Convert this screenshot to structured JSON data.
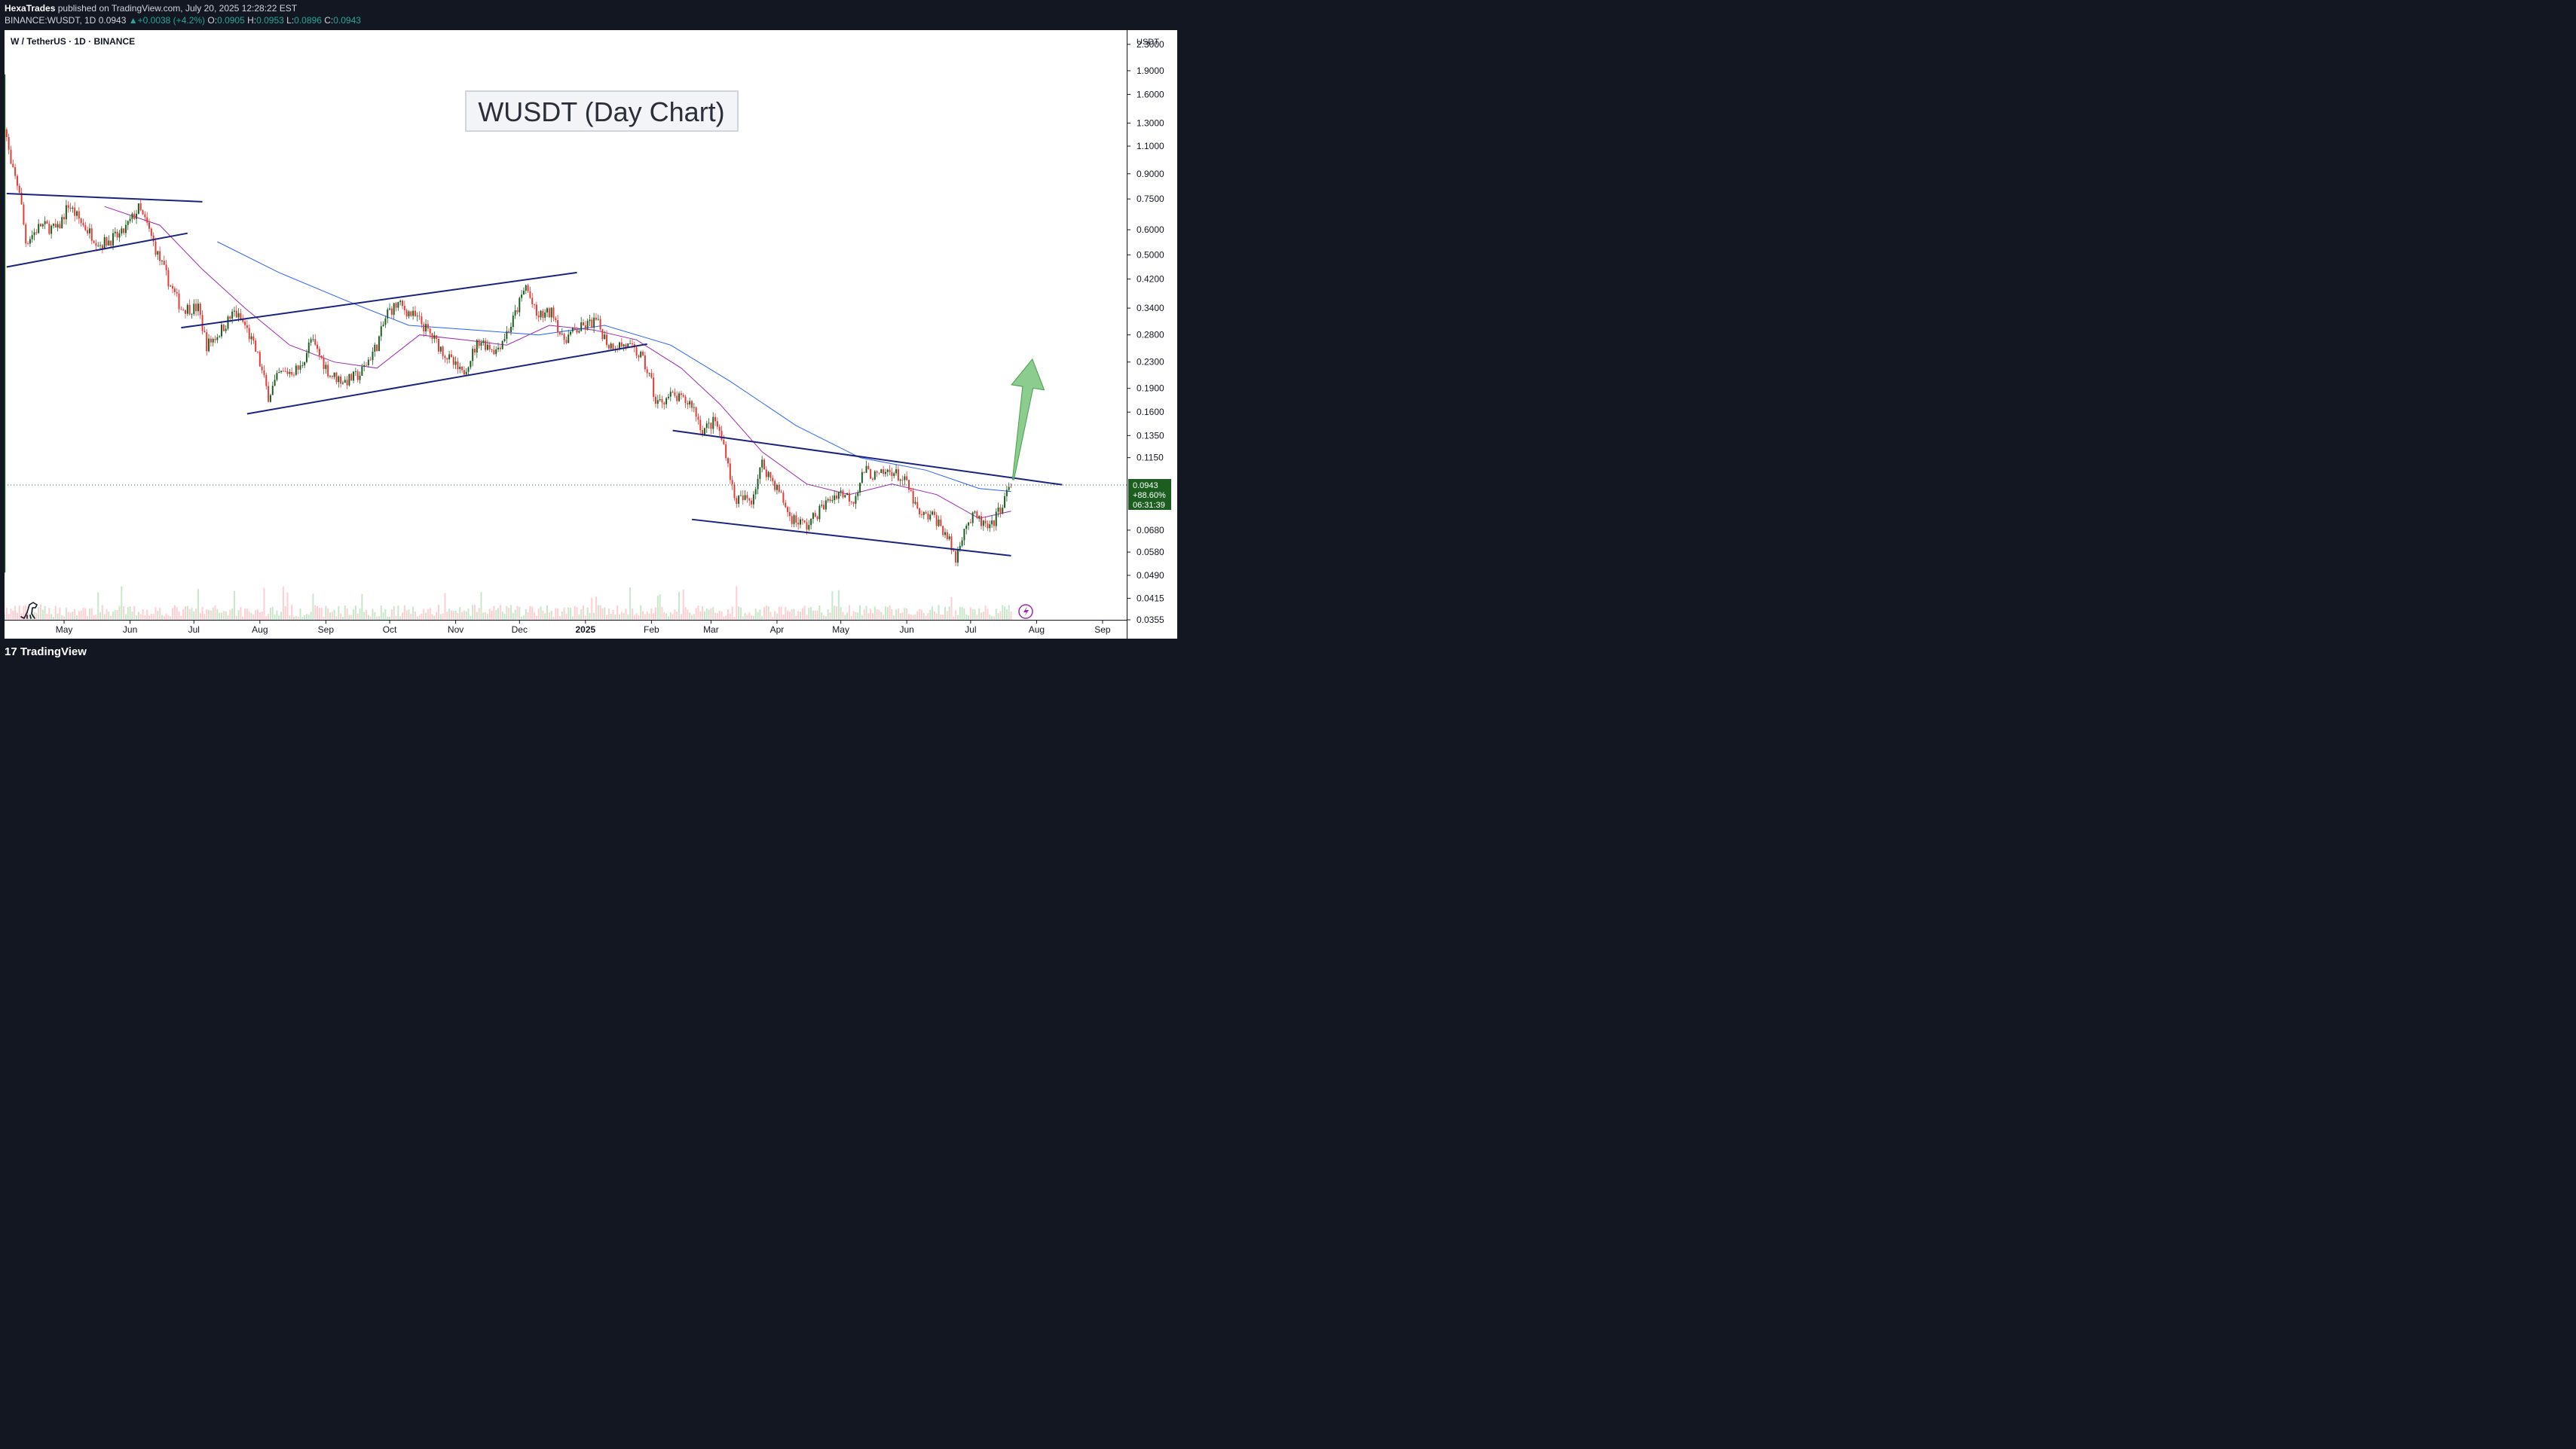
{
  "header": {
    "author": "HexaTrades",
    "published_text": "published on TradingView.com, July 20, 2025 12:28:22 EST",
    "symbol_line": "BINANCE:WUSDT, 1D",
    "last": "0.0943",
    "change": "+0.0038 (+4.2%)",
    "open_label": "O:",
    "open": "0.0905",
    "high_label": "H:",
    "high": "0.0953",
    "low_label": "L:",
    "low": "0.0896",
    "close_label": "C:",
    "close": "0.0943"
  },
  "legend": {
    "instrument": "W / TetherUS · 1D · BINANCE"
  },
  "price_badge": {
    "price": "0.0943",
    "change_pct": "+88.60%",
    "countdown": "06:31:39"
  },
  "footer": {
    "logo_text": "TradingView",
    "logo_mark": "17"
  },
  "colors": {
    "up": "#26a69a",
    "candle_up": "#1b5e20",
    "candle_down": "#e53935",
    "ma_fast": "#9c27b0",
    "ma_slow": "#2962ff",
    "trendline": "#1a237e",
    "arrow": "#66bb6a",
    "price_badge": "#1b5e20"
  },
  "chart_data": {
    "type": "candlestick",
    "title": "WUSDT (Day Chart)",
    "y_axis": {
      "unit": "USDT",
      "scale": "log",
      "ticks": [
        2.3,
        1.9,
        1.6,
        1.3,
        1.1,
        0.9,
        0.75,
        0.6,
        0.5,
        0.42,
        0.34,
        0.28,
        0.23,
        0.19,
        0.16,
        0.135,
        0.115,
        0.068,
        0.058,
        0.049,
        0.0415,
        0.0355
      ],
      "tick_labels": [
        "2.3000",
        "1.9000",
        "1.6000",
        "1.3000",
        "1.1000",
        "0.9000",
        "0.7500",
        "0.6000",
        "0.5000",
        "0.4200",
        "0.3400",
        "0.2800",
        "0.2300",
        "0.1900",
        "0.1600",
        "0.1350",
        "0.1150",
        "0.0680",
        "0.0580",
        "0.0490",
        "0.0415",
        "0.0355"
      ],
      "range": [
        0.0355,
        2.55
      ]
    },
    "x_axis": {
      "range": [
        "2024-04-03",
        "2025-09-12"
      ],
      "ticks": [
        {
          "date": "2024-05-01",
          "label": "May"
        },
        {
          "date": "2024-06-01",
          "label": "Jun"
        },
        {
          "date": "2024-07-01",
          "label": "Jul"
        },
        {
          "date": "2024-08-01",
          "label": "Aug"
        },
        {
          "date": "2024-09-01",
          "label": "Sep"
        },
        {
          "date": "2024-10-01",
          "label": "Oct"
        },
        {
          "date": "2024-11-01",
          "label": "Nov"
        },
        {
          "date": "2024-12-01",
          "label": "Dec"
        },
        {
          "date": "2025-01-01",
          "label": "2025",
          "bold": true
        },
        {
          "date": "2025-02-01",
          "label": "Feb"
        },
        {
          "date": "2025-03-01",
          "label": "Mar"
        },
        {
          "date": "2025-04-01",
          "label": "Apr"
        },
        {
          "date": "2025-05-01",
          "label": "May"
        },
        {
          "date": "2025-06-01",
          "label": "Jun"
        },
        {
          "date": "2025-07-01",
          "label": "Jul"
        },
        {
          "date": "2025-08-01",
          "label": "Aug"
        },
        {
          "date": "2025-09-01",
          "label": "Sep"
        }
      ]
    },
    "price_path": [
      {
        "date": "2024-04-03",
        "price": 1.3
      },
      {
        "date": "2024-04-06",
        "price": 0.95
      },
      {
        "date": "2024-04-10",
        "price": 0.8
      },
      {
        "date": "2024-04-13",
        "price": 0.55
      },
      {
        "date": "2024-04-20",
        "price": 0.62
      },
      {
        "date": "2024-04-28",
        "price": 0.6
      },
      {
        "date": "2024-05-03",
        "price": 0.72
      },
      {
        "date": "2024-05-10",
        "price": 0.62
      },
      {
        "date": "2024-05-18",
        "price": 0.54
      },
      {
        "date": "2024-05-28",
        "price": 0.58
      },
      {
        "date": "2024-06-05",
        "price": 0.7
      },
      {
        "date": "2024-06-09",
        "price": 0.62
      },
      {
        "date": "2024-06-14",
        "price": 0.5
      },
      {
        "date": "2024-06-20",
        "price": 0.4
      },
      {
        "date": "2024-06-25",
        "price": 0.34
      },
      {
        "date": "2024-07-03",
        "price": 0.34
      },
      {
        "date": "2024-07-07",
        "price": 0.26
      },
      {
        "date": "2024-07-12",
        "price": 0.28
      },
      {
        "date": "2024-07-20",
        "price": 0.33
      },
      {
        "date": "2024-07-25",
        "price": 0.3
      },
      {
        "date": "2024-07-31",
        "price": 0.24
      },
      {
        "date": "2024-08-05",
        "price": 0.18
      },
      {
        "date": "2024-08-10",
        "price": 0.21
      },
      {
        "date": "2024-08-20",
        "price": 0.22
      },
      {
        "date": "2024-08-25",
        "price": 0.27
      },
      {
        "date": "2024-09-03",
        "price": 0.21
      },
      {
        "date": "2024-09-10",
        "price": 0.2
      },
      {
        "date": "2024-09-17",
        "price": 0.21
      },
      {
        "date": "2024-09-25",
        "price": 0.26
      },
      {
        "date": "2024-09-30",
        "price": 0.33
      },
      {
        "date": "2024-10-05",
        "price": 0.35
      },
      {
        "date": "2024-10-15",
        "price": 0.31
      },
      {
        "date": "2024-10-22",
        "price": 0.27
      },
      {
        "date": "2024-10-30",
        "price": 0.23
      },
      {
        "date": "2024-11-04",
        "price": 0.21
      },
      {
        "date": "2024-11-12",
        "price": 0.27
      },
      {
        "date": "2024-11-20",
        "price": 0.25
      },
      {
        "date": "2024-11-27",
        "price": 0.3
      },
      {
        "date": "2024-12-04",
        "price": 0.4
      },
      {
        "date": "2024-12-09",
        "price": 0.32
      },
      {
        "date": "2024-12-17",
        "price": 0.33
      },
      {
        "date": "2024-12-21",
        "price": 0.27
      },
      {
        "date": "2024-12-28",
        "price": 0.29
      },
      {
        "date": "2025-01-06",
        "price": 0.31
      },
      {
        "date": "2025-01-12",
        "price": 0.26
      },
      {
        "date": "2025-01-20",
        "price": 0.26
      },
      {
        "date": "2025-01-27",
        "price": 0.24
      },
      {
        "date": "2025-02-01",
        "price": 0.2
      },
      {
        "date": "2025-02-03",
        "price": 0.17
      },
      {
        "date": "2025-02-10",
        "price": 0.18
      },
      {
        "date": "2025-02-20",
        "price": 0.17
      },
      {
        "date": "2025-02-25",
        "price": 0.14
      },
      {
        "date": "2025-03-03",
        "price": 0.15
      },
      {
        "date": "2025-03-08",
        "price": 0.12
      },
      {
        "date": "2025-03-12",
        "price": 0.085
      },
      {
        "date": "2025-03-20",
        "price": 0.085
      },
      {
        "date": "2025-03-25",
        "price": 0.11
      },
      {
        "date": "2025-04-02",
        "price": 0.09
      },
      {
        "date": "2025-04-07",
        "price": 0.075
      },
      {
        "date": "2025-04-15",
        "price": 0.07
      },
      {
        "date": "2025-04-22",
        "price": 0.08
      },
      {
        "date": "2025-04-30",
        "price": 0.09
      },
      {
        "date": "2025-05-07",
        "price": 0.085
      },
      {
        "date": "2025-05-12",
        "price": 0.105
      },
      {
        "date": "2025-05-18",
        "price": 0.1
      },
      {
        "date": "2025-05-25",
        "price": 0.105
      },
      {
        "date": "2025-06-01",
        "price": 0.095
      },
      {
        "date": "2025-06-07",
        "price": 0.075
      },
      {
        "date": "2025-06-14",
        "price": 0.075
      },
      {
        "date": "2025-06-20",
        "price": 0.065
      },
      {
        "date": "2025-06-24",
        "price": 0.055
      },
      {
        "date": "2025-06-28",
        "price": 0.07
      },
      {
        "date": "2025-07-03",
        "price": 0.075
      },
      {
        "date": "2025-07-10",
        "price": 0.068
      },
      {
        "date": "2025-07-15",
        "price": 0.08
      },
      {
        "date": "2025-07-20",
        "price": 0.0943
      }
    ],
    "moving_averages": [
      {
        "color": "#9c27b0",
        "points": [
          {
            "date": "2024-05-20",
            "price": 0.71
          },
          {
            "date": "2024-06-15",
            "price": 0.62
          },
          {
            "date": "2024-07-05",
            "price": 0.45
          },
          {
            "date": "2024-07-25",
            "price": 0.34
          },
          {
            "date": "2024-08-15",
            "price": 0.26
          },
          {
            "date": "2024-09-05",
            "price": 0.23
          },
          {
            "date": "2024-09-25",
            "price": 0.22
          },
          {
            "date": "2024-10-15",
            "price": 0.28
          },
          {
            "date": "2024-11-05",
            "price": 0.27
          },
          {
            "date": "2024-11-25",
            "price": 0.26
          },
          {
            "date": "2024-12-15",
            "price": 0.3
          },
          {
            "date": "2025-01-05",
            "price": 0.29
          },
          {
            "date": "2025-01-25",
            "price": 0.27
          },
          {
            "date": "2025-02-15",
            "price": 0.22
          },
          {
            "date": "2025-03-05",
            "price": 0.17
          },
          {
            "date": "2025-03-25",
            "price": 0.12
          },
          {
            "date": "2025-04-15",
            "price": 0.095
          },
          {
            "date": "2025-05-05",
            "price": 0.088
          },
          {
            "date": "2025-05-25",
            "price": 0.095
          },
          {
            "date": "2025-06-15",
            "price": 0.088
          },
          {
            "date": "2025-07-05",
            "price": 0.074
          },
          {
            "date": "2025-07-20",
            "price": 0.078
          }
        ]
      },
      {
        "color": "#2962ff",
        "points": [
          {
            "date": "2024-07-12",
            "price": 0.55
          },
          {
            "date": "2024-08-10",
            "price": 0.44
          },
          {
            "date": "2024-09-10",
            "price": 0.36
          },
          {
            "date": "2024-10-10",
            "price": 0.3
          },
          {
            "date": "2024-11-10",
            "price": 0.29
          },
          {
            "date": "2024-12-10",
            "price": 0.28
          },
          {
            "date": "2025-01-10",
            "price": 0.3
          },
          {
            "date": "2025-02-10",
            "price": 0.26
          },
          {
            "date": "2025-03-10",
            "price": 0.2
          },
          {
            "date": "2025-04-10",
            "price": 0.145
          },
          {
            "date": "2025-05-10",
            "price": 0.115
          },
          {
            "date": "2025-06-10",
            "price": 0.105
          },
          {
            "date": "2025-07-05",
            "price": 0.092
          },
          {
            "date": "2025-07-20",
            "price": 0.09
          }
        ]
      }
    ],
    "trendlines": [
      {
        "from": {
          "date": "2024-04-04",
          "price": 0.78
        },
        "to": {
          "date": "2024-07-05",
          "price": 0.735
        }
      },
      {
        "from": {
          "date": "2024-04-04",
          "price": 0.458
        },
        "to": {
          "date": "2024-06-28",
          "price": 0.585
        }
      },
      {
        "from": {
          "date": "2024-06-25",
          "price": 0.295
        },
        "to": {
          "date": "2024-12-28",
          "price": 0.44
        }
      },
      {
        "from": {
          "date": "2024-07-26",
          "price": 0.158
        },
        "to": {
          "date": "2025-01-30",
          "price": 0.262
        }
      },
      {
        "from": {
          "date": "2025-02-11",
          "price": 0.14
        },
        "to": {
          "date": "2025-08-13",
          "price": 0.0945
        }
      },
      {
        "from": {
          "date": "2025-02-20",
          "price": 0.0735
        },
        "to": {
          "date": "2025-07-20",
          "price": 0.0565
        }
      }
    ],
    "last_price": {
      "date": "2025-07-20",
      "price": 0.0943
    },
    "projection_arrow": {
      "from": {
        "date": "2025-07-21",
        "price": 0.098
      },
      "to": {
        "date": "2025-07-30",
        "price": 0.235
      }
    }
  }
}
